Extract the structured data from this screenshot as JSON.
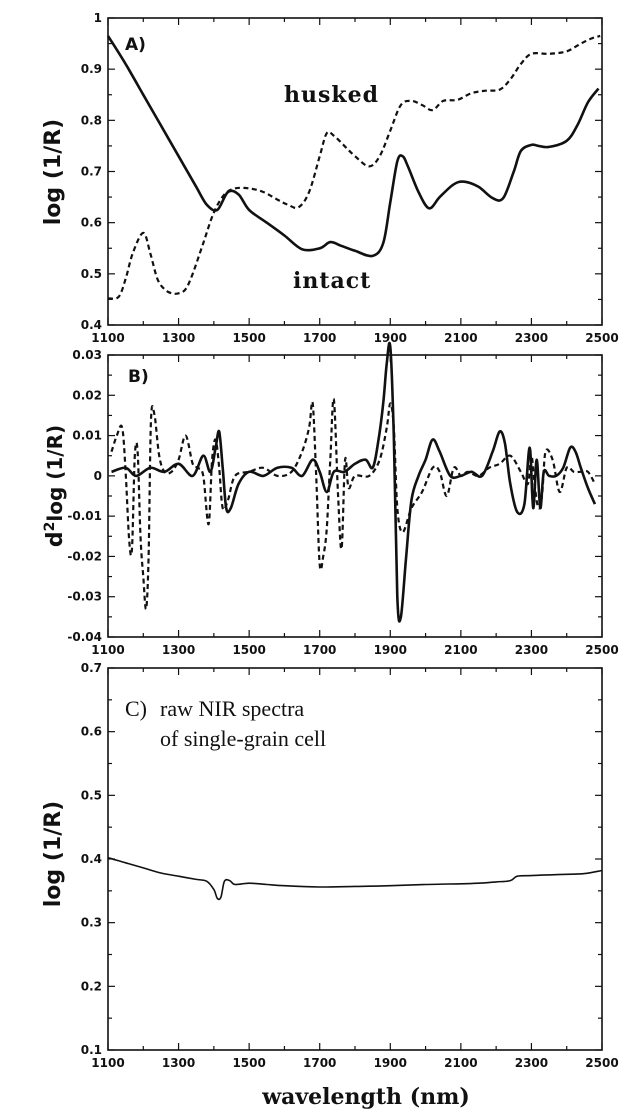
{
  "chart_data": [
    {
      "type": "line",
      "panel_label": "A)",
      "xlabel": "",
      "ylabel": "log (1/R)",
      "xlim": [
        1100,
        2500
      ],
      "ylim": [
        0.4,
        1.0
      ],
      "xticks": [
        "1100",
        "1300",
        "1500",
        "1700",
        "1900",
        "2100",
        "2300",
        "2500"
      ],
      "yticks": [
        "0.4",
        "0.5",
        "0.6",
        "0.7",
        "0.8",
        "0.9",
        "1"
      ],
      "annotations": [
        {
          "text": "husked",
          "x": 1680,
          "y": 0.83
        },
        {
          "text": "intact",
          "x": 1680,
          "y": 0.5
        }
      ],
      "series": [
        {
          "name": "intact",
          "style": "solid",
          "x": [
            1100,
            1150,
            1200,
            1250,
            1300,
            1350,
            1380,
            1410,
            1440,
            1470,
            1500,
            1550,
            1600,
            1650,
            1700,
            1730,
            1760,
            1800,
            1850,
            1880,
            1900,
            1920,
            1935,
            1950,
            1980,
            2010,
            2040,
            2080,
            2110,
            2150,
            2190,
            2220,
            2250,
            2270,
            2300,
            2320,
            2350,
            2400,
            2430,
            2460,
            2490
          ],
          "y": [
            0.965,
            0.91,
            0.85,
            0.79,
            0.73,
            0.67,
            0.635,
            0.625,
            0.66,
            0.655,
            0.625,
            0.6,
            0.575,
            0.548,
            0.55,
            0.562,
            0.555,
            0.545,
            0.535,
            0.56,
            0.64,
            0.72,
            0.73,
            0.71,
            0.66,
            0.628,
            0.65,
            0.675,
            0.68,
            0.67,
            0.648,
            0.648,
            0.7,
            0.74,
            0.752,
            0.75,
            0.748,
            0.76,
            0.79,
            0.835,
            0.862
          ]
        },
        {
          "name": "husked",
          "style": "dashed",
          "x": [
            1100,
            1130,
            1150,
            1170,
            1200,
            1220,
            1240,
            1260,
            1280,
            1300,
            1320,
            1340,
            1370,
            1400,
            1430,
            1460,
            1500,
            1540,
            1580,
            1610,
            1640,
            1670,
            1700,
            1720,
            1740,
            1770,
            1800,
            1840,
            1870,
            1900,
            1930,
            1960,
            1990,
            2020,
            2050,
            2090,
            2130,
            2170,
            2210,
            2240,
            2270,
            2300,
            2350,
            2400,
            2440,
            2470,
            2495
          ],
          "y": [
            0.452,
            0.455,
            0.49,
            0.54,
            0.58,
            0.54,
            0.49,
            0.47,
            0.462,
            0.462,
            0.47,
            0.5,
            0.56,
            0.62,
            0.655,
            0.667,
            0.667,
            0.66,
            0.645,
            0.635,
            0.63,
            0.66,
            0.73,
            0.775,
            0.77,
            0.75,
            0.73,
            0.71,
            0.73,
            0.78,
            0.83,
            0.838,
            0.83,
            0.82,
            0.838,
            0.84,
            0.853,
            0.858,
            0.86,
            0.88,
            0.91,
            0.93,
            0.93,
            0.935,
            0.95,
            0.96,
            0.965
          ]
        }
      ]
    },
    {
      "type": "line",
      "panel_label": "B)",
      "xlabel": "",
      "ylabel_main": "d",
      "ylabel_sup": "2",
      "ylabel_rest": "log (1/R)",
      "xlim": [
        1100,
        2500
      ],
      "ylim": [
        -0.04,
        0.03
      ],
      "xticks": [
        "1100",
        "1300",
        "1500",
        "1700",
        "1900",
        "2100",
        "2300",
        "2500"
      ],
      "yticks": [
        "-0.04",
        "-0.03",
        "-0.02",
        "-0.01",
        "0",
        "0.01",
        "0.02",
        "0.03"
      ],
      "series": [
        {
          "name": "intact",
          "style": "solid",
          "x": [
            1110,
            1150,
            1180,
            1220,
            1260,
            1300,
            1340,
            1370,
            1390,
            1405,
            1415,
            1425,
            1435,
            1448,
            1470,
            1500,
            1540,
            1580,
            1620,
            1650,
            1680,
            1700,
            1720,
            1740,
            1770,
            1800,
            1830,
            1850,
            1865,
            1880,
            1890,
            1900,
            1910,
            1920,
            1930,
            1945,
            1960,
            1980,
            2000,
            2020,
            2040,
            2070,
            2100,
            2130,
            2160,
            2190,
            2210,
            2225,
            2240,
            2260,
            2280,
            2295,
            2305,
            2315,
            2325,
            2335,
            2350,
            2370,
            2390,
            2410,
            2425,
            2440,
            2460,
            2480
          ],
          "y": [
            0.001,
            0.002,
            0.0,
            0.002,
            0.001,
            0.003,
            0.0,
            0.005,
            0.001,
            0.007,
            0.011,
            0.002,
            -0.008,
            -0.008,
            -0.002,
            0.001,
            0.0,
            0.002,
            0.002,
            0.0,
            0.004,
            0.001,
            -0.004,
            0.001,
            0.001,
            0.003,
            0.004,
            0.002,
            0.008,
            0.018,
            0.028,
            0.032,
            0.01,
            -0.03,
            -0.035,
            -0.02,
            -0.006,
            0.0,
            0.004,
            0.009,
            0.006,
            0.0,
            0.0,
            0.001,
            0.0,
            0.006,
            0.011,
            0.008,
            -0.002,
            -0.009,
            -0.007,
            0.007,
            -0.008,
            0.004,
            -0.008,
            0.001,
            0.0,
            0.0,
            0.002,
            0.007,
            0.006,
            0.002,
            -0.003,
            -0.007
          ]
        },
        {
          "name": "husked",
          "style": "dashed",
          "x": [
            1110,
            1125,
            1140,
            1150,
            1160,
            1168,
            1176,
            1184,
            1192,
            1200,
            1208,
            1215,
            1222,
            1232,
            1245,
            1260,
            1280,
            1300,
            1320,
            1340,
            1355,
            1370,
            1385,
            1395,
            1405,
            1415,
            1425,
            1440,
            1460,
            1500,
            1540,
            1580,
            1620,
            1650,
            1670,
            1680,
            1690,
            1700,
            1710,
            1720,
            1730,
            1740,
            1752,
            1762,
            1772,
            1782,
            1800,
            1840,
            1870,
            1890,
            1900,
            1910,
            1920,
            1935,
            1960,
            1990,
            2020,
            2040,
            2060,
            2080,
            2100,
            2120,
            2150,
            2180,
            2210,
            2240,
            2270,
            2290,
            2300,
            2310,
            2320,
            2330,
            2340,
            2360,
            2380,
            2400,
            2420,
            2440,
            2460,
            2480
          ],
          "y": [
            0.006,
            0.01,
            0.012,
            0.001,
            -0.016,
            -0.018,
            0.005,
            0.006,
            -0.015,
            -0.025,
            -0.033,
            -0.02,
            0.014,
            0.015,
            0.005,
            0.001,
            0.001,
            0.004,
            0.01,
            0.003,
            0.002,
            0.0,
            -0.012,
            0.004,
            0.009,
            0.002,
            -0.008,
            -0.006,
            0.0,
            0.001,
            0.002,
            0.0,
            0.001,
            0.006,
            0.012,
            0.018,
            0.0,
            -0.022,
            -0.02,
            -0.013,
            0.004,
            0.019,
            -0.005,
            -0.018,
            0.004,
            -0.003,
            0.0,
            0.0,
            0.004,
            0.012,
            0.018,
            0.012,
            -0.008,
            -0.014,
            -0.008,
            -0.004,
            0.002,
            0.001,
            -0.005,
            0.002,
            0.0,
            0.001,
            0.0,
            0.002,
            0.003,
            0.005,
            0.001,
            -0.002,
            0.005,
            -0.003,
            -0.008,
            -0.005,
            0.006,
            0.004,
            -0.004,
            0.002,
            0.001,
            0.001,
            0.001,
            -0.002
          ]
        }
      ]
    },
    {
      "type": "line",
      "panel_label": "C)",
      "xlabel": "wavelength (nm)",
      "ylabel": "log (1/R)",
      "xlim": [
        1100,
        2500
      ],
      "ylim": [
        0.1,
        0.7
      ],
      "xticks": [
        "1100",
        "1300",
        "1500",
        "1700",
        "1900",
        "2100",
        "2300",
        "2500"
      ],
      "yticks": [
        "0.1",
        "0.2",
        "0.3",
        "0.4",
        "0.5",
        "0.6",
        "0.7"
      ],
      "annotation_lines": [
        "raw NIR spectra",
        "of single-grain cell"
      ],
      "series": [
        {
          "name": "single-grain cell",
          "style": "solid",
          "x": [
            1100,
            1150,
            1200,
            1250,
            1300,
            1350,
            1380,
            1400,
            1410,
            1420,
            1430,
            1445,
            1460,
            1500,
            1550,
            1600,
            1700,
            1800,
            1900,
            2000,
            2100,
            2150,
            2200,
            2240,
            2260,
            2300,
            2350,
            2400,
            2450,
            2500
          ],
          "y": [
            0.402,
            0.394,
            0.386,
            0.378,
            0.373,
            0.368,
            0.365,
            0.352,
            0.338,
            0.34,
            0.365,
            0.366,
            0.36,
            0.362,
            0.36,
            0.358,
            0.356,
            0.357,
            0.358,
            0.36,
            0.361,
            0.362,
            0.364,
            0.366,
            0.373,
            0.374,
            0.375,
            0.376,
            0.377,
            0.382
          ]
        }
      ]
    }
  ]
}
